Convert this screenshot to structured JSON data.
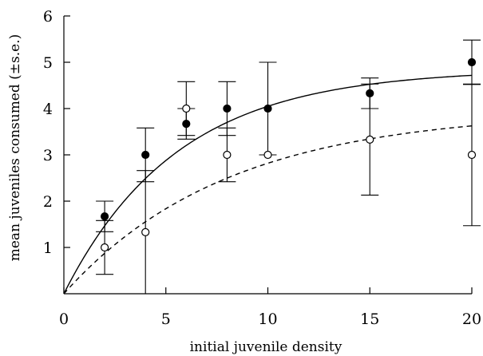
{
  "chart_data": {
    "type": "scatter",
    "title": "",
    "xlabel": "initial juvenile density",
    "ylabel": "mean juveniles consumed (±s.e.)",
    "xlim": [
      0,
      20
    ],
    "ylim": [
      0,
      6
    ],
    "xticks": [
      0,
      5,
      10,
      15,
      20
    ],
    "yticks": [
      1,
      2,
      3,
      4,
      5,
      6
    ],
    "xtick_labels": [
      "0",
      "5",
      "10",
      "15",
      "20"
    ],
    "ytick_labels": [
      "1",
      "2",
      "3",
      "4",
      "5",
      "6"
    ],
    "grid": false,
    "legend": false,
    "series": [
      {
        "marker": "filled-circle",
        "color": "#000000",
        "x": [
          2,
          4,
          6,
          8,
          10,
          15,
          20
        ],
        "y": [
          1.67,
          3.0,
          3.67,
          4.0,
          4.0,
          4.33,
          5.0
        ],
        "err": [
          0.33,
          0.58,
          0.33,
          0.58,
          1.0,
          0.33,
          0.48
        ]
      },
      {
        "marker": "open-circle",
        "color": "#000000",
        "x": [
          2,
          4,
          6,
          8,
          10,
          15,
          20
        ],
        "y": [
          1.0,
          1.33,
          4.0,
          3.0,
          3.0,
          3.33,
          3.0
        ],
        "err": [
          0.58,
          1.33,
          0.58,
          0.58,
          0.0,
          1.2,
          1.53
        ]
      }
    ],
    "fits": [
      {
        "style": "solid",
        "asymptote": 4.85,
        "rate": 0.18
      },
      {
        "style": "dashed",
        "asymptote": 3.95,
        "rate": 0.125
      }
    ]
  }
}
